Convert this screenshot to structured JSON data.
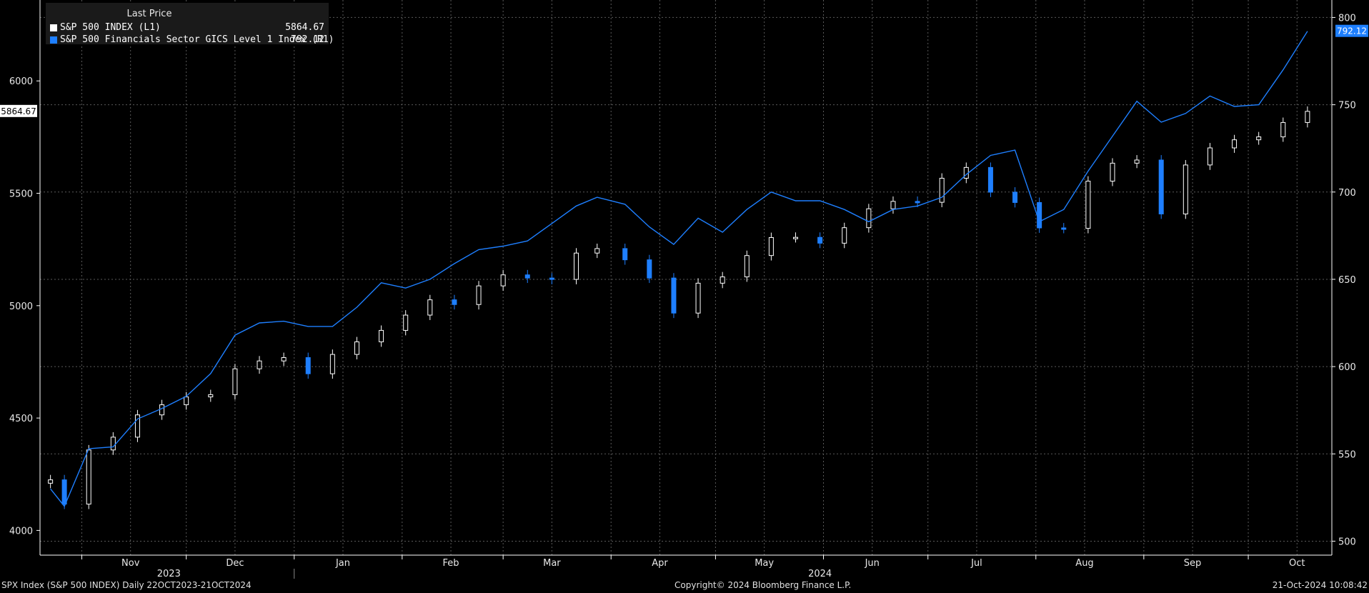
{
  "legend": {
    "title": "Last Price",
    "series1_name": "S&P 500 INDEX  (L1)",
    "series1_value": "5864.67",
    "series2_name": "S&P 500 Financials Sector GICS Level 1 Index  (R1)",
    "series2_value": "792.12"
  },
  "footer": {
    "left": "SPX Index (S&P 500 INDEX)  Daily 22OCT2023-21OCT2024",
    "center": "Copyright© 2024 Bloomberg Finance L.P.",
    "right": "21-Oct-2024 10:08:42"
  },
  "colors": {
    "background": "#000000",
    "series1": "#ffffff",
    "series2": "#1e7fff",
    "down_candle": "#1e7fff",
    "grid": "#5a5a5a"
  },
  "chart_data": {
    "type": "line",
    "title": "",
    "grid": true,
    "legend_position": "top-left",
    "x_month_labels": [
      "Nov",
      "Dec",
      "Jan",
      "Feb",
      "Mar",
      "Apr",
      "May",
      "Jun",
      "Jul",
      "Aug",
      "Sep",
      "Oct"
    ],
    "x_year_labels": [
      "2023",
      "2024"
    ],
    "left_axis": {
      "ticks": [
        4000,
        4500,
        5000,
        5500,
        6000
      ],
      "ylim": [
        3890,
        6360
      ],
      "last_value_label": "5864.67"
    },
    "right_axis": {
      "ticks": [
        500,
        550,
        600,
        650,
        700,
        750,
        800
      ],
      "ylim": [
        492,
        810
      ],
      "last_value_label": "792.12"
    },
    "series": [
      {
        "name": "S&P 500 INDEX  (L1)",
        "axis": "left",
        "style": "candlestick",
        "weekly_closes": [
          {
            "date": "2023-10-23",
            "close": 4225
          },
          {
            "date": "2023-10-27",
            "close": 4117
          },
          {
            "date": "2023-11-03",
            "close": 4358
          },
          {
            "date": "2023-11-10",
            "close": 4415
          },
          {
            "date": "2023-11-17",
            "close": 4514
          },
          {
            "date": "2023-11-24",
            "close": 4559
          },
          {
            "date": "2023-12-01",
            "close": 4594
          },
          {
            "date": "2023-12-08",
            "close": 4604
          },
          {
            "date": "2023-12-15",
            "close": 4719
          },
          {
            "date": "2023-12-22",
            "close": 4754
          },
          {
            "date": "2023-12-29",
            "close": 4769
          },
          {
            "date": "2024-01-05",
            "close": 4697
          },
          {
            "date": "2024-01-12",
            "close": 4783
          },
          {
            "date": "2024-01-19",
            "close": 4839
          },
          {
            "date": "2024-01-26",
            "close": 4890
          },
          {
            "date": "2024-02-02",
            "close": 4958
          },
          {
            "date": "2024-02-09",
            "close": 5026
          },
          {
            "date": "2024-02-16",
            "close": 5005
          },
          {
            "date": "2024-02-23",
            "close": 5088
          },
          {
            "date": "2024-03-01",
            "close": 5137
          },
          {
            "date": "2024-03-08",
            "close": 5123
          },
          {
            "date": "2024-03-15",
            "close": 5117
          },
          {
            "date": "2024-03-22",
            "close": 5234
          },
          {
            "date": "2024-03-28",
            "close": 5254
          },
          {
            "date": "2024-04-05",
            "close": 5204
          },
          {
            "date": "2024-04-12",
            "close": 5123
          },
          {
            "date": "2024-04-19",
            "close": 4967
          },
          {
            "date": "2024-04-26",
            "close": 5100
          },
          {
            "date": "2024-05-03",
            "close": 5128
          },
          {
            "date": "2024-05-10",
            "close": 5223
          },
          {
            "date": "2024-05-17",
            "close": 5303
          },
          {
            "date": "2024-05-24",
            "close": 5304
          },
          {
            "date": "2024-05-31",
            "close": 5278
          },
          {
            "date": "2024-06-07",
            "close": 5347
          },
          {
            "date": "2024-06-14",
            "close": 5431
          },
          {
            "date": "2024-06-21",
            "close": 5464
          },
          {
            "date": "2024-06-28",
            "close": 5460
          },
          {
            "date": "2024-07-05",
            "close": 5567
          },
          {
            "date": "2024-07-12",
            "close": 5615
          },
          {
            "date": "2024-07-19",
            "close": 5505
          },
          {
            "date": "2024-07-26",
            "close": 5459
          },
          {
            "date": "2024-08-02",
            "close": 5346
          },
          {
            "date": "2024-08-09",
            "close": 5344
          },
          {
            "date": "2024-08-16",
            "close": 5554
          },
          {
            "date": "2024-08-23",
            "close": 5634
          },
          {
            "date": "2024-08-30",
            "close": 5648
          },
          {
            "date": "2024-09-06",
            "close": 5408
          },
          {
            "date": "2024-09-13",
            "close": 5626
          },
          {
            "date": "2024-09-20",
            "close": 5702
          },
          {
            "date": "2024-09-27",
            "close": 5738
          },
          {
            "date": "2024-10-04",
            "close": 5751
          },
          {
            "date": "2024-10-11",
            "close": 5815
          },
          {
            "date": "2024-10-18",
            "close": 5864.67
          }
        ]
      },
      {
        "name": "S&P 500 Financials Sector GICS Level 1 Index  (R1)",
        "axis": "right",
        "style": "line",
        "weekly_values": [
          {
            "date": "2023-10-23",
            "value": 530
          },
          {
            "date": "2023-10-27",
            "value": 520
          },
          {
            "date": "2023-11-03",
            "value": 553
          },
          {
            "date": "2023-11-10",
            "value": 554
          },
          {
            "date": "2023-11-17",
            "value": 570
          },
          {
            "date": "2023-11-24",
            "value": 576
          },
          {
            "date": "2023-12-01",
            "value": 583
          },
          {
            "date": "2023-12-08",
            "value": 596
          },
          {
            "date": "2023-12-15",
            "value": 618
          },
          {
            "date": "2023-12-22",
            "value": 625
          },
          {
            "date": "2023-12-29",
            "value": 626
          },
          {
            "date": "2024-01-05",
            "value": 623
          },
          {
            "date": "2024-01-12",
            "value": 623
          },
          {
            "date": "2024-01-19",
            "value": 634
          },
          {
            "date": "2024-01-26",
            "value": 648
          },
          {
            "date": "2024-02-02",
            "value": 645
          },
          {
            "date": "2024-02-09",
            "value": 650
          },
          {
            "date": "2024-02-16",
            "value": 659
          },
          {
            "date": "2024-02-23",
            "value": 667
          },
          {
            "date": "2024-03-01",
            "value": 669
          },
          {
            "date": "2024-03-08",
            "value": 672
          },
          {
            "date": "2024-03-15",
            "value": 682
          },
          {
            "date": "2024-03-22",
            "value": 692
          },
          {
            "date": "2024-03-28",
            "value": 697
          },
          {
            "date": "2024-04-05",
            "value": 693
          },
          {
            "date": "2024-04-12",
            "value": 680
          },
          {
            "date": "2024-04-19",
            "value": 670
          },
          {
            "date": "2024-04-26",
            "value": 685
          },
          {
            "date": "2024-05-03",
            "value": 677
          },
          {
            "date": "2024-05-10",
            "value": 690
          },
          {
            "date": "2024-05-17",
            "value": 700
          },
          {
            "date": "2024-05-24",
            "value": 695
          },
          {
            "date": "2024-05-31",
            "value": 695
          },
          {
            "date": "2024-06-07",
            "value": 690
          },
          {
            "date": "2024-06-14",
            "value": 683
          },
          {
            "date": "2024-06-21",
            "value": 690
          },
          {
            "date": "2024-06-28",
            "value": 692
          },
          {
            "date": "2024-07-05",
            "value": 697
          },
          {
            "date": "2024-07-12",
            "value": 710
          },
          {
            "date": "2024-07-19",
            "value": 721
          },
          {
            "date": "2024-07-26",
            "value": 724
          },
          {
            "date": "2024-08-02",
            "value": 683
          },
          {
            "date": "2024-08-09",
            "value": 690
          },
          {
            "date": "2024-08-16",
            "value": 712
          },
          {
            "date": "2024-08-23",
            "value": 732
          },
          {
            "date": "2024-08-30",
            "value": 752
          },
          {
            "date": "2024-09-06",
            "value": 740
          },
          {
            "date": "2024-09-13",
            "value": 745
          },
          {
            "date": "2024-09-20",
            "value": 755
          },
          {
            "date": "2024-09-27",
            "value": 749
          },
          {
            "date": "2024-10-04",
            "value": 750
          },
          {
            "date": "2024-10-11",
            "value": 770
          },
          {
            "date": "2024-10-18",
            "value": 792.12
          }
        ]
      }
    ]
  }
}
